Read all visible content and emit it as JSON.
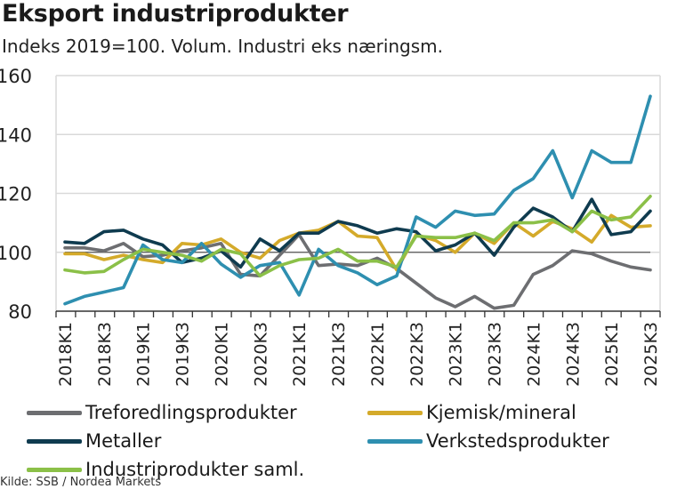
{
  "chart_data": {
    "type": "line",
    "title": "Eksport industriprodukter",
    "subtitle": "Indeks 2019=100. Volum. Industri eks næringsm.",
    "xlabel": "",
    "ylabel": "",
    "ylim": [
      80,
      160
    ],
    "yticks": [
      80,
      100,
      120,
      140,
      160
    ],
    "reference_line": 100,
    "grid": true,
    "legend_position": "bottom",
    "x": [
      "2018K1",
      "2018K2",
      "2018K3",
      "2018K4",
      "2019K1",
      "2019K2",
      "2019K3",
      "2019K4",
      "2020K1",
      "2020K2",
      "2020K3",
      "2020K4",
      "2021K1",
      "2021K2",
      "2021K3",
      "2021K4",
      "2022K1",
      "2022K2",
      "2022K3",
      "2022K4",
      "2023K1",
      "2023K2",
      "2023K3",
      "2023K4",
      "2024K1",
      "2024K2",
      "2024K3",
      "2024K4",
      "2025K1",
      "2025K2",
      "2025K3"
    ],
    "xtick_labels": [
      "2018K1",
      "2018K3",
      "2019K1",
      "2019K3",
      "2020K1",
      "2020K3",
      "2021K1",
      "2021K3",
      "2022K1",
      "2022K3",
      "2023K1",
      "2023K3",
      "2024K1",
      "2024K3",
      "2025K1",
      "2025K3"
    ],
    "series": [
      {
        "name": "Treforedlingsprodukter",
        "color": "#6d6e71",
        "values": [
          101.5,
          101.5,
          100.5,
          103,
          98.5,
          99,
          100.5,
          101.5,
          103,
          92.5,
          92,
          99,
          106,
          95.5,
          96,
          95.5,
          98,
          94.5,
          89.5,
          84.5,
          81.5,
          85,
          81,
          82,
          92.5,
          95.5,
          100.5,
          99.5,
          97,
          95,
          94
        ]
      },
      {
        "name": "Kjemisk/mineral",
        "color": "#d4aa2a",
        "values": [
          99.5,
          99.5,
          97.5,
          99,
          97.5,
          96.5,
          103,
          102.5,
          104.5,
          100,
          98,
          104,
          106.5,
          107.5,
          110.5,
          105.5,
          105,
          94,
          106,
          104,
          100,
          106.5,
          103,
          110,
          105.5,
          110.5,
          108,
          103.5,
          112.5,
          108.5,
          109
        ]
      },
      {
        "name": "Metaller",
        "color": "#0f3b4f",
        "values": [
          103.5,
          103,
          107,
          107.5,
          104.5,
          102.5,
          96.5,
          98,
          100.5,
          95,
          104.5,
          100.5,
          106.5,
          106.5,
          110.5,
          109,
          106.5,
          108,
          107,
          100.5,
          102.5,
          106.5,
          99,
          108.5,
          115,
          112,
          107,
          118,
          106,
          107,
          114
        ]
      },
      {
        "name": "Verkstedsprodukter",
        "color": "#2e8fb0",
        "values": [
          82.5,
          85,
          86.5,
          88,
          102.5,
          97.5,
          96.5,
          103,
          96,
          91.5,
          95.5,
          96.5,
          85.5,
          101,
          95.5,
          93,
          89,
          92,
          112,
          108.5,
          114,
          112.5,
          113,
          121,
          125,
          134.5,
          118.5,
          134.5,
          130.5,
          130.5,
          153
        ]
      },
      {
        "name": "Industriprodukter saml.",
        "color": "#8bc048",
        "values": [
          94,
          93,
          93.5,
          97.5,
          101,
          100,
          99,
          97,
          101,
          99.5,
          92,
          95.5,
          97.5,
          98,
          101,
          97,
          97,
          95,
          105.5,
          105,
          105,
          106.5,
          104,
          110,
          110,
          111,
          107,
          114,
          111,
          112,
          119
        ]
      }
    ]
  },
  "source_note": "Kilde: SSB / Nordea Markets"
}
